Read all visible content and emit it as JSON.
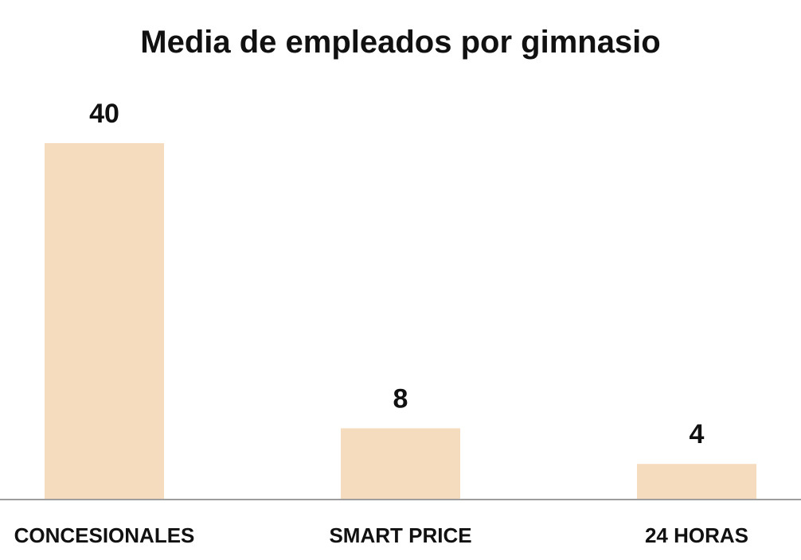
{
  "chart_data": {
    "type": "bar",
    "title": "Media de empleados por gimnasio",
    "xlabel": "",
    "ylabel": "",
    "categories": [
      "CONCESIONALES",
      "SMART PRICE",
      "24 HORAS"
    ],
    "values": [
      40,
      8,
      4
    ],
    "ylim": [
      0,
      40
    ],
    "grid": false,
    "legend": "none",
    "bar_color": "#F6DCBF",
    "axis_color": "#9E9E9E",
    "text_color": "#111111"
  }
}
